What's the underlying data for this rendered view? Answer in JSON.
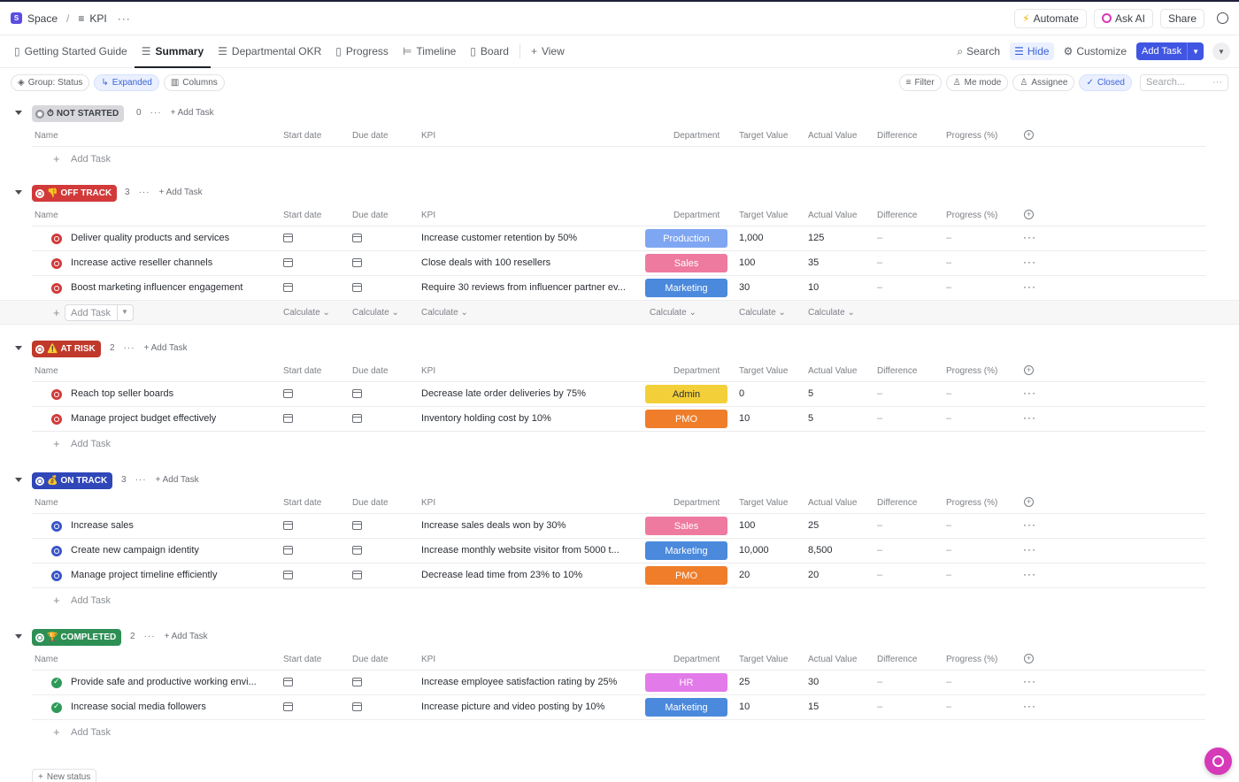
{
  "breadcrumb": {
    "space_icon": "S",
    "space": "Space",
    "sep": "/",
    "list_icon": "≡",
    "list": "KPI",
    "more": "···"
  },
  "topbar": {
    "automate": "Automate",
    "ask_ai": "Ask AI",
    "share": "Share"
  },
  "tabs": [
    {
      "label": "Getting Started Guide",
      "icon": "doc-icon",
      "active": false
    },
    {
      "label": "Summary",
      "icon": "list-icon",
      "active": true
    },
    {
      "label": "Departmental OKR",
      "icon": "list-icon",
      "active": false
    },
    {
      "label": "Progress",
      "icon": "doc-icon",
      "active": false
    },
    {
      "label": "Timeline",
      "icon": "timeline-icon",
      "active": false
    },
    {
      "label": "Board",
      "icon": "board-icon",
      "active": false
    },
    {
      "label": "View",
      "icon": "plus-icon",
      "active": false
    }
  ],
  "view_actions": {
    "search": "Search",
    "hide": "Hide",
    "customize": "Customize",
    "add_task": "Add Task"
  },
  "filterbar": {
    "group": "Group: Status",
    "expanded": "Expanded",
    "columns": "Columns",
    "filter": "Filter",
    "me_mode": "Me mode",
    "assignee": "Assignee",
    "closed": "Closed",
    "search_placeholder": "Search..."
  },
  "columns": [
    "Name",
    "Start date",
    "Due date",
    "KPI",
    "Department",
    "Target Value",
    "Actual Value",
    "Difference",
    "Progress (%)"
  ],
  "add_task_label": "Add Task",
  "calculate_label": "Calculate",
  "new_status": "New status",
  "colors": {
    "not_started": "#d8d8dc",
    "off_track": "#d23a3a",
    "at_risk": "#c0392b",
    "on_track": "#2f47b8",
    "completed": "#2e8f55",
    "Production": "#7fa6f2",
    "Sales": "#ee7aa0",
    "Marketing": "#4a89dc",
    "Admin": "#f3d03a",
    "PMO": "#ef7d2a",
    "HR": "#e37ae9"
  },
  "groups": [
    {
      "key": "not_started",
      "label": "NOT STARTED",
      "emoji": "⏱",
      "count": "0",
      "tasks": []
    },
    {
      "key": "off_track",
      "label": "OFF TRACK",
      "emoji": "👎",
      "count": "3",
      "calc": true,
      "tasks": [
        {
          "name": "Deliver quality products and services",
          "kpi": "Increase customer retention by 50%",
          "dept": "Production",
          "target": "1,000",
          "actual": "125",
          "diff": "–",
          "prog": "–"
        },
        {
          "name": "Increase active reseller channels",
          "kpi": "Close deals with 100 resellers",
          "dept": "Sales",
          "target": "100",
          "actual": "35",
          "diff": "–",
          "prog": "–"
        },
        {
          "name": "Boost marketing influencer engagement",
          "kpi": "Require 30 reviews from influencer partner ev...",
          "dept": "Marketing",
          "target": "30",
          "actual": "10",
          "diff": "–",
          "prog": "–"
        }
      ]
    },
    {
      "key": "at_risk",
      "label": "AT RISK",
      "emoji": "⚠️",
      "count": "2",
      "tasks": [
        {
          "name": "Reach top seller boards",
          "kpi": "Decrease late order deliveries by 75%",
          "dept": "Admin",
          "target": "0",
          "actual": "5",
          "diff": "–",
          "prog": "–"
        },
        {
          "name": "Manage project budget effectively",
          "kpi": "Inventory holding cost by 10%",
          "dept": "PMO",
          "target": "10",
          "actual": "5",
          "diff": "–",
          "prog": "–"
        }
      ]
    },
    {
      "key": "on_track",
      "label": "ON TRACK",
      "emoji": "💰",
      "count": "3",
      "tasks": [
        {
          "name": "Increase sales",
          "kpi": "Increase sales deals won by 30%",
          "dept": "Sales",
          "target": "100",
          "actual": "25",
          "diff": "–",
          "prog": "–"
        },
        {
          "name": "Create new campaign identity",
          "kpi": "Increase monthly website visitor from 5000 t...",
          "dept": "Marketing",
          "target": "10,000",
          "actual": "8,500",
          "diff": "–",
          "prog": "–"
        },
        {
          "name": "Manage project timeline efficiently",
          "kpi": "Decrease lead time from 23% to 10%",
          "dept": "PMO",
          "target": "20",
          "actual": "20",
          "diff": "–",
          "prog": "–"
        }
      ]
    },
    {
      "key": "completed",
      "label": "COMPLETED",
      "emoji": "🏆",
      "count": "2",
      "tasks": [
        {
          "name": "Provide safe and productive working envi...",
          "kpi": "Increase employee satisfaction rating by 25%",
          "dept": "HR",
          "target": "25",
          "actual": "30",
          "diff": "–",
          "prog": "–"
        },
        {
          "name": "Increase social media followers",
          "kpi": "Increase picture and video posting by 10%",
          "dept": "Marketing",
          "target": "10",
          "actual": "15",
          "diff": "–",
          "prog": "–"
        }
      ]
    }
  ]
}
